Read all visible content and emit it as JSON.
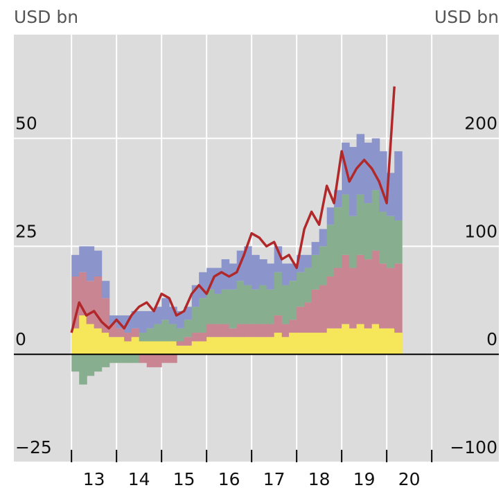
{
  "chart_data": {
    "type": "bar",
    "y_label": "USD bn",
    "y2_label": "USD bn",
    "x": [
      2013.0,
      2013.17,
      2013.33,
      2013.5,
      2013.67,
      2013.83,
      2014.0,
      2014.17,
      2014.33,
      2014.5,
      2014.67,
      2014.83,
      2015.0,
      2015.17,
      2015.33,
      2015.5,
      2015.67,
      2015.83,
      2016.0,
      2016.17,
      2016.33,
      2016.5,
      2016.67,
      2016.83,
      2017.0,
      2017.17,
      2017.33,
      2017.5,
      2017.67,
      2017.83,
      2018.0,
      2018.17,
      2018.33,
      2018.5,
      2018.67,
      2018.83,
      2019.0,
      2019.17,
      2019.33,
      2019.5,
      2019.67,
      2019.83,
      2020.0,
      2020.17
    ],
    "series": [
      {
        "color": "#f6e659",
        "values": [
          6,
          9,
          7,
          6,
          5,
          4,
          4,
          3,
          4,
          3,
          3,
          3,
          3,
          3,
          2,
          2,
          3,
          3,
          4,
          4,
          4,
          4,
          4,
          4,
          4,
          4,
          4,
          5,
          4,
          5,
          5,
          5,
          5,
          5,
          6,
          6,
          7,
          6,
          7,
          6,
          7,
          6,
          6,
          5
        ]
      },
      {
        "color": "#c98592",
        "values": [
          12,
          10,
          10,
          12,
          8,
          3,
          2,
          2,
          2,
          -2,
          -3,
          -3,
          -2,
          -2,
          1,
          2,
          2,
          2,
          3,
          3,
          3,
          2,
          3,
          3,
          3,
          3,
          3,
          4,
          3,
          3,
          6,
          7,
          10,
          11,
          12,
          14,
          16,
          14,
          16,
          16,
          17,
          15,
          14,
          16
        ]
      },
      {
        "color": "#88ae90",
        "values": [
          -4,
          -7,
          -5,
          -4,
          -3,
          -2,
          -2,
          -2,
          -2,
          2,
          3,
          4,
          5,
          4,
          3,
          4,
          6,
          8,
          8,
          7,
          8,
          9,
          10,
          9,
          8,
          9,
          8,
          10,
          9,
          9,
          8,
          8,
          8,
          9,
          12,
          14,
          14,
          12,
          14,
          13,
          14,
          12,
          12,
          10
        ]
      },
      {
        "color": "#8b95cb",
        "values": [
          5,
          6,
          8,
          6,
          4,
          2,
          3,
          4,
          4,
          5,
          4,
          4,
          5,
          4,
          4,
          3,
          5,
          6,
          5,
          6,
          7,
          6,
          7,
          9,
          8,
          6,
          6,
          6,
          5,
          4,
          4,
          3,
          3,
          4,
          4,
          4,
          12,
          16,
          14,
          14,
          12,
          14,
          10,
          16
        ]
      },
      {
        "color": "#b0282a",
        "axis": "y2",
        "type": "line",
        "values": [
          20,
          48,
          36,
          40,
          30,
          24,
          32,
          24,
          36,
          44,
          48,
          40,
          56,
          52,
          36,
          40,
          56,
          64,
          56,
          72,
          76,
          72,
          76,
          92,
          112,
          108,
          100,
          104,
          88,
          92,
          80,
          116,
          132,
          120,
          156,
          140,
          188,
          160,
          172,
          180,
          172,
          160,
          140,
          248
        ]
      }
    ],
    "xlim": [
      2011.72,
      2022.49
    ],
    "xgrid": [
      2013,
      2014,
      2015,
      2016,
      2017,
      2018,
      2019,
      2020,
      2021
    ],
    "xticks": [
      {
        "value": 2013.5,
        "label": "13"
      },
      {
        "value": 2014.5,
        "label": "14"
      },
      {
        "value": 2015.5,
        "label": "15"
      },
      {
        "value": 2016.5,
        "label": "16"
      },
      {
        "value": 2017.5,
        "label": "17"
      },
      {
        "value": 2018.5,
        "label": "18"
      },
      {
        "value": 2019.5,
        "label": "19"
      },
      {
        "value": 2020.5,
        "label": "20"
      }
    ],
    "ylim": [
      -25,
      74
    ],
    "yticks": [
      {
        "value": -25,
        "label": "−25"
      },
      0,
      25,
      50
    ],
    "y2lim": [
      -100,
      296
    ],
    "y2ticks": [
      {
        "value": -100,
        "label": "−100"
      },
      0,
      100,
      200
    ],
    "grid": true
  }
}
